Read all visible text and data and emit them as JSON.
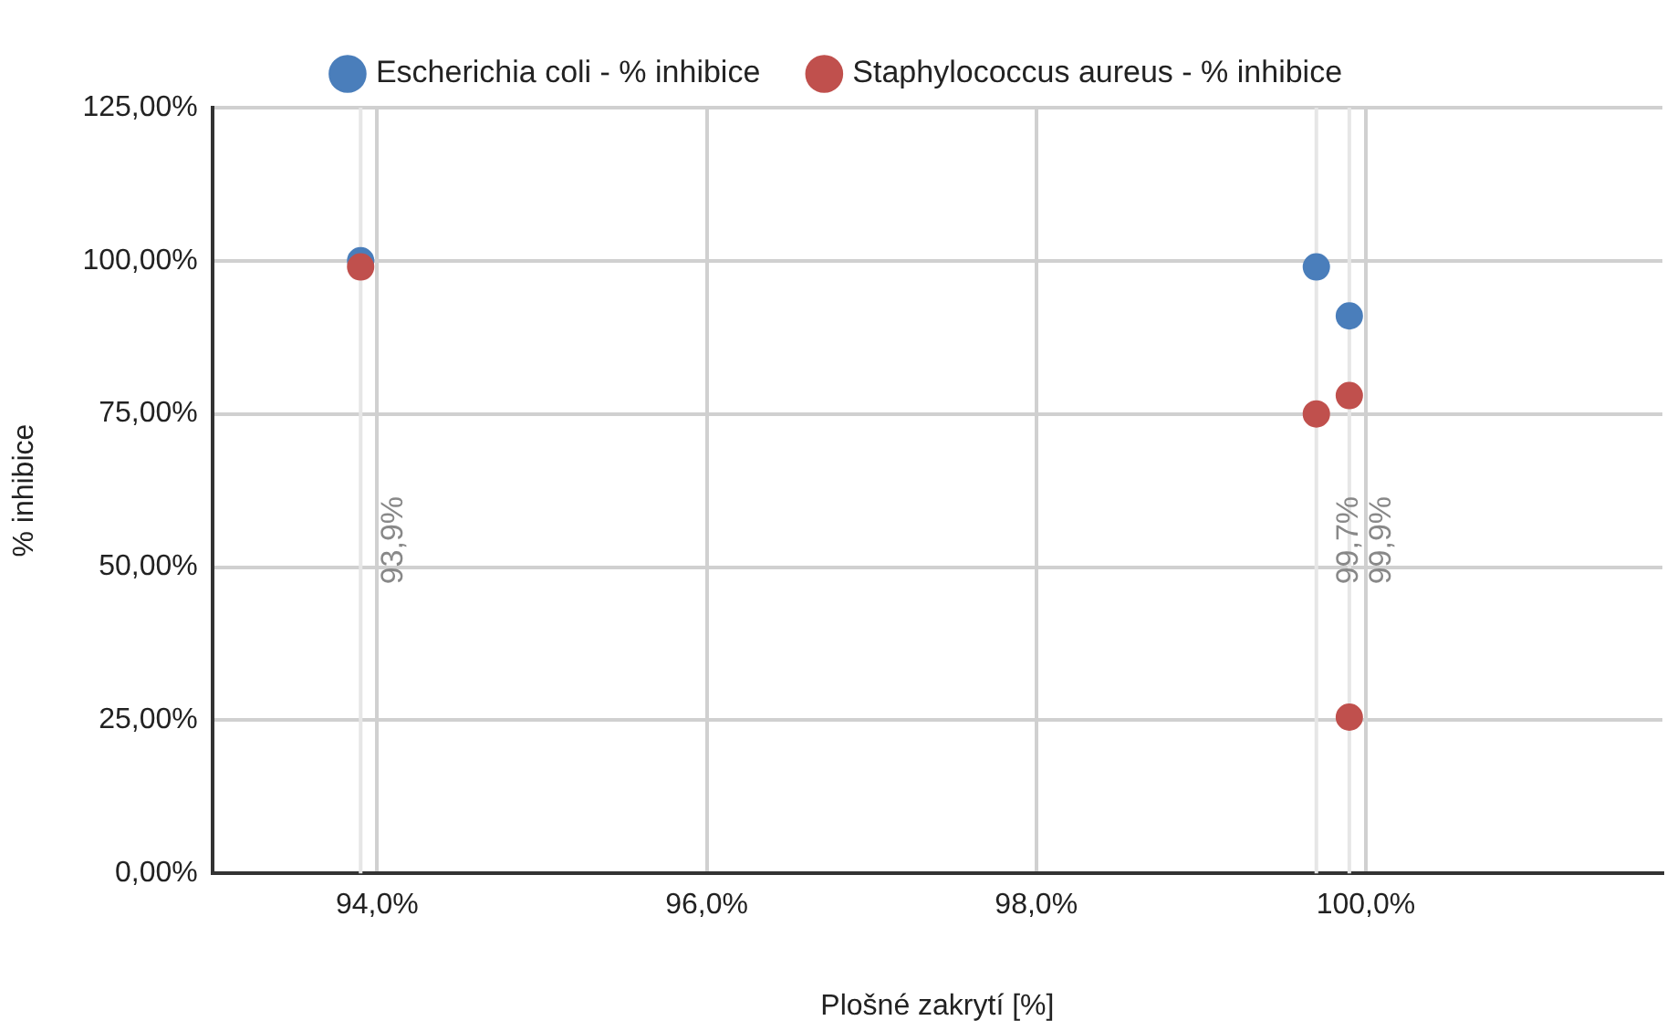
{
  "chart_data": {
    "type": "scatter",
    "xlabel": "Plošné zakrytí [%]",
    "ylabel": "% inhibice",
    "series": [
      {
        "name": "Escherichia coli - % inhibice",
        "color": "#4a7ebb",
        "x": [
          93.9,
          99.7,
          99.9
        ],
        "values": [
          100,
          99,
          91
        ]
      },
      {
        "name": "Staphylococcus aureus - % inhibice",
        "color": "#c0504d",
        "x": [
          93.9,
          99.7,
          99.9,
          99.9
        ],
        "values": [
          99,
          75,
          78,
          25.5
        ]
      }
    ],
    "xlim": [
      93,
      101.8
    ],
    "xticks": [
      {
        "value": 94,
        "label": "94,0%"
      },
      {
        "value": 96,
        "label": "96,0%"
      },
      {
        "value": 98,
        "label": "98,0%"
      },
      {
        "value": 100,
        "label": "100,0%"
      }
    ],
    "ylim": [
      0,
      125
    ],
    "yticks": [
      {
        "value": 0,
        "label": "0,00%"
      },
      {
        "value": 25,
        "label": "25,00%"
      },
      {
        "value": 50,
        "label": "50,00%"
      },
      {
        "value": 75,
        "label": "75,00%"
      },
      {
        "value": 100,
        "label": "100,00%"
      },
      {
        "value": 125,
        "label": "125,00%"
      }
    ],
    "ref_lines": [
      {
        "axis": "x",
        "value": 93.9,
        "label": "93,9%",
        "color": "#e6e6e6"
      },
      {
        "axis": "x",
        "value": 99.7,
        "label": "99,7%",
        "color": "#e6e6e6"
      },
      {
        "axis": "x",
        "value": 99.9,
        "label": "99,9%",
        "color": "#e6e6e6"
      }
    ],
    "grid": true,
    "legend": "top",
    "marker": "circle"
  }
}
